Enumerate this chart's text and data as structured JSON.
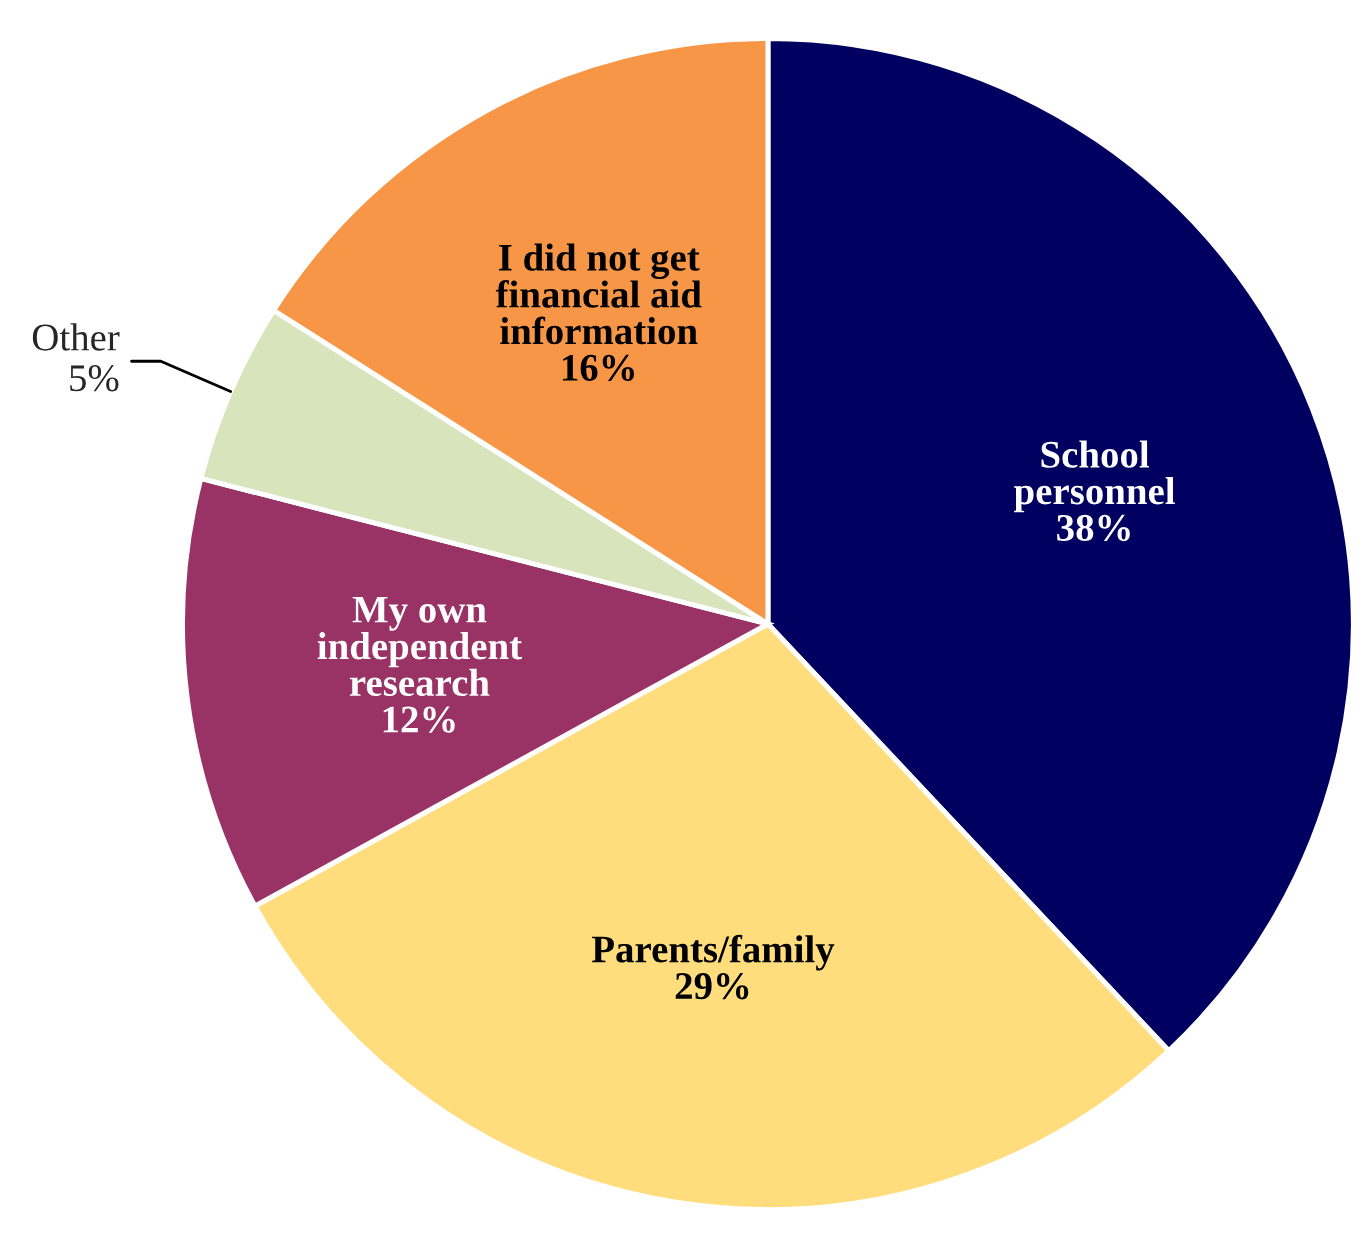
{
  "chart_data": {
    "type": "pie",
    "categories": [
      "School\npersonnel",
      "Parents/family",
      "My own\nindependent\nresearch",
      "Other",
      "I did not get\nfinancial aid\ninformation"
    ],
    "values": [
      38,
      29,
      12,
      5,
      16
    ],
    "value_labels": [
      "38%",
      "29%",
      "12%",
      "5%",
      "16%"
    ],
    "colors": [
      "#000060",
      "#ffdc7c",
      "#993366",
      "#d8e4bc",
      "#f79646"
    ]
  }
}
